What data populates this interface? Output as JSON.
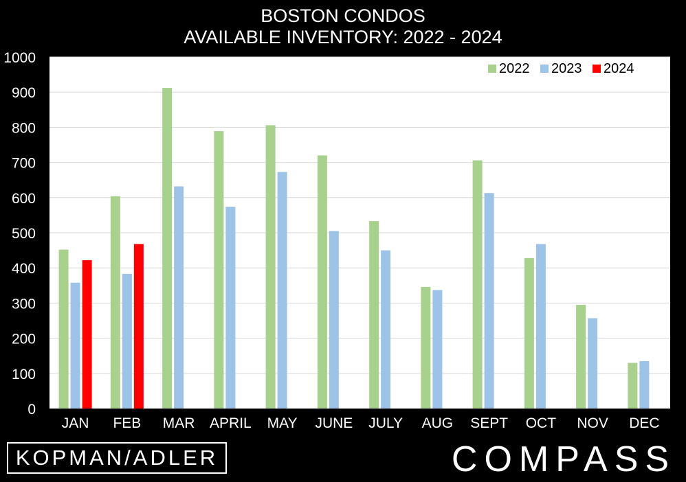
{
  "chart_data": {
    "type": "bar",
    "title": "BOSTON CONDOS",
    "subtitle": "AVAILABLE INVENTORY: 2022 - 2024",
    "categories": [
      "JAN",
      "FEB",
      "MAR",
      "APRIL",
      "MAY",
      "JUNE",
      "JULY",
      "AUG",
      "SEPT",
      "OCT",
      "NOV",
      "DEC"
    ],
    "series": [
      {
        "name": "2022",
        "color": "#a9d18e",
        "values": [
          452,
          604,
          912,
          789,
          806,
          720,
          533,
          346,
          706,
          428,
          295,
          130
        ]
      },
      {
        "name": "2023",
        "color": "#9dc3e6",
        "values": [
          358,
          383,
          632,
          574,
          673,
          505,
          450,
          337,
          613,
          468,
          257,
          135
        ]
      },
      {
        "name": "2024",
        "color": "#ff0000",
        "values": [
          422,
          468,
          null,
          null,
          null,
          null,
          null,
          null,
          null,
          null,
          null,
          null
        ]
      }
    ],
    "ylim": [
      0,
      1000
    ],
    "yticks": [
      "0",
      "100",
      "200",
      "300",
      "400",
      "500",
      "600",
      "700",
      "800",
      "900",
      "1000"
    ],
    "grid": true,
    "legend_position": "top-right"
  },
  "branding": {
    "left_logo": "KOPMAN/ADLER",
    "right_logo": "COMPASS"
  }
}
